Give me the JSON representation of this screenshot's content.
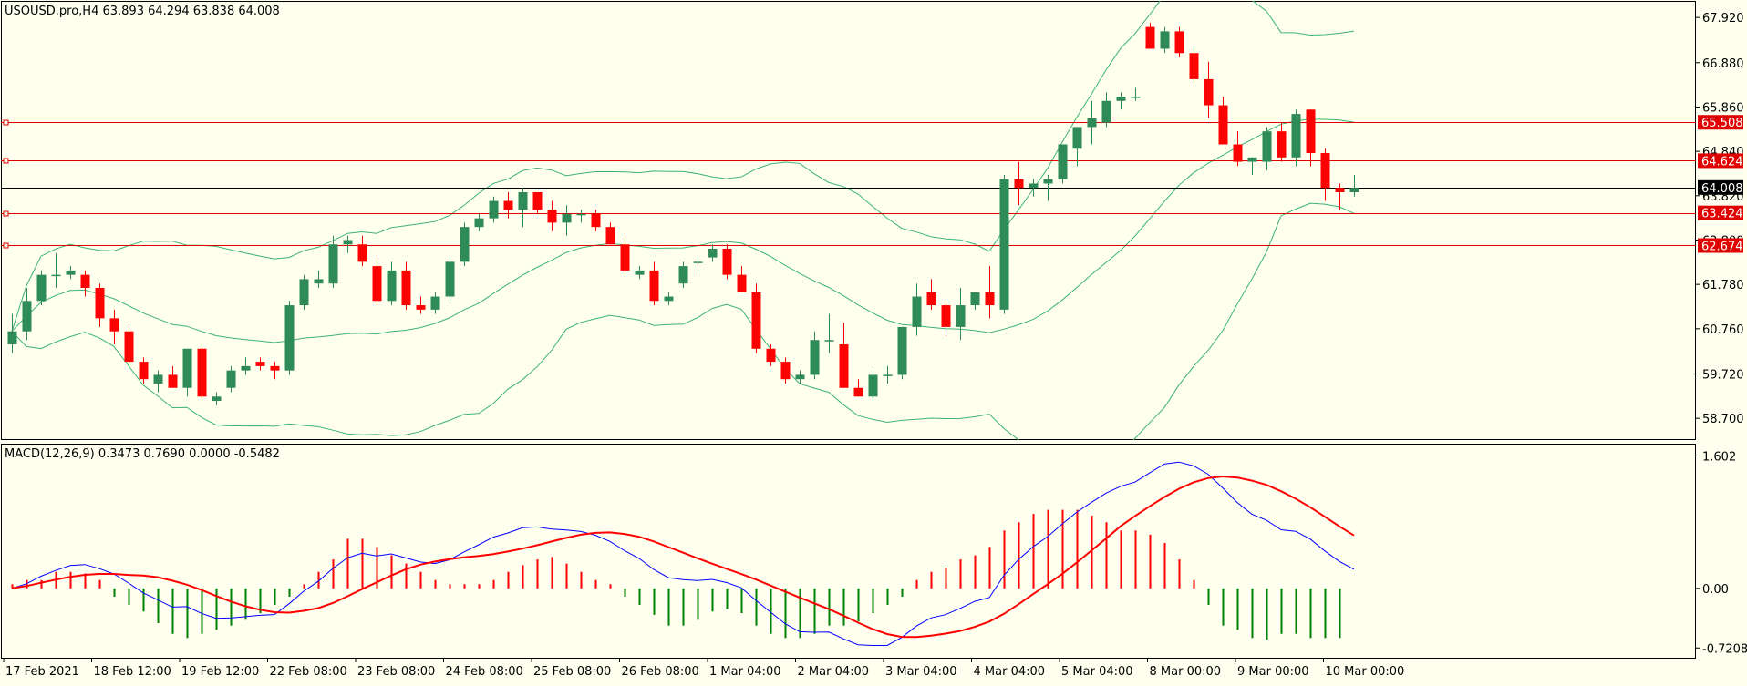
{
  "chart_data": [
    {
      "type": "candlestick",
      "panel": "main",
      "header": "USOUSD.pro,H4  63.893 64.294 63.838 64.008",
      "symbol": "USOUSD.pro",
      "timeframe": "H4",
      "ohlc_label": [
        "63.893",
        "64.294",
        "63.838",
        "64.008"
      ],
      "ylim": [
        58.2,
        68.3
      ],
      "y_tick_labels": [
        "67.920",
        "66.880",
        "65.860",
        "64.840",
        "63.820",
        "62.800",
        "61.780",
        "60.760",
        "59.720",
        "58.700"
      ],
      "x_tick_labels": [
        "17 Feb 2021",
        "18 Feb 12:00",
        "19 Feb 12:00",
        "22 Feb 08:00",
        "23 Feb 08:00",
        "24 Feb 08:00",
        "25 Feb 08:00",
        "26 Feb 08:00",
        "1 Mar 04:00",
        "2 Mar 04:00",
        "3 Mar 04:00",
        "4 Mar 04:00",
        "5 Mar 04:00",
        "8 Mar 00:00",
        "9 Mar 00:00",
        "10 Mar 00:00"
      ],
      "horizontal_lines": [
        {
          "label": "65.508",
          "value": 65.508,
          "color": "#e00000"
        },
        {
          "label": "64.624",
          "value": 64.624,
          "color": "#e00000"
        },
        {
          "label": "64.008",
          "value": 64.008,
          "color": "#000000"
        },
        {
          "label": "63.424",
          "value": 63.424,
          "color": "#e00000"
        },
        {
          "label": "62.674",
          "value": 62.674,
          "color": "#e00000"
        }
      ],
      "candles": [
        [
          60.4,
          61.1,
          60.2,
          60.7
        ],
        [
          60.7,
          61.7,
          60.5,
          61.4
        ],
        [
          61.4,
          62.1,
          61.3,
          62.0
        ],
        [
          62.0,
          62.5,
          61.7,
          62.0
        ],
        [
          62.0,
          62.2,
          61.9,
          62.1
        ],
        [
          62.0,
          62.1,
          61.5,
          61.7
        ],
        [
          61.7,
          61.8,
          60.8,
          61.0
        ],
        [
          61.0,
          61.2,
          60.4,
          60.7
        ],
        [
          60.7,
          60.8,
          59.9,
          60.0
        ],
        [
          60.0,
          60.1,
          59.5,
          59.6
        ],
        [
          59.5,
          59.8,
          59.3,
          59.7
        ],
        [
          59.7,
          59.9,
          59.5,
          59.4
        ],
        [
          59.4,
          60.3,
          59.2,
          60.3
        ],
        [
          60.3,
          60.4,
          59.1,
          59.2
        ],
        [
          59.1,
          59.3,
          59.0,
          59.2
        ],
        [
          59.4,
          59.9,
          59.3,
          59.8
        ],
        [
          59.8,
          60.1,
          59.7,
          59.9
        ],
        [
          60.0,
          60.1,
          59.8,
          59.9
        ],
        [
          59.9,
          60.0,
          59.6,
          59.8
        ],
        [
          59.8,
          61.4,
          59.7,
          61.3
        ],
        [
          61.3,
          62.0,
          61.2,
          61.9
        ],
        [
          61.8,
          62.1,
          61.7,
          61.9
        ],
        [
          61.8,
          62.9,
          61.7,
          62.7
        ],
        [
          62.7,
          62.9,
          62.5,
          62.8
        ],
        [
          62.7,
          62.9,
          62.2,
          62.3
        ],
        [
          62.2,
          62.4,
          61.3,
          61.4
        ],
        [
          61.4,
          62.3,
          61.3,
          62.1
        ],
        [
          62.1,
          62.3,
          61.2,
          61.3
        ],
        [
          61.3,
          61.5,
          61.1,
          61.2
        ],
        [
          61.2,
          61.6,
          61.1,
          61.5
        ],
        [
          61.5,
          62.4,
          61.4,
          62.3
        ],
        [
          62.3,
          63.2,
          62.2,
          63.1
        ],
        [
          63.1,
          63.4,
          63.0,
          63.3
        ],
        [
          63.3,
          63.8,
          63.2,
          63.7
        ],
        [
          63.7,
          63.9,
          63.3,
          63.5
        ],
        [
          63.5,
          64.0,
          63.1,
          63.9
        ],
        [
          63.9,
          63.9,
          63.4,
          63.5
        ],
        [
          63.5,
          63.7,
          63.0,
          63.2
        ],
        [
          63.2,
          63.6,
          62.9,
          63.4
        ],
        [
          63.4,
          63.5,
          63.2,
          63.4
        ],
        [
          63.4,
          63.5,
          63.0,
          63.1
        ],
        [
          63.1,
          63.2,
          62.7,
          62.7
        ],
        [
          62.7,
          62.9,
          62.0,
          62.1
        ],
        [
          62.0,
          62.2,
          61.9,
          62.1
        ],
        [
          62.1,
          62.3,
          61.3,
          61.4
        ],
        [
          61.4,
          61.6,
          61.3,
          61.5
        ],
        [
          61.8,
          62.3,
          61.7,
          62.2
        ],
        [
          62.3,
          62.4,
          62.0,
          62.3
        ],
        [
          62.4,
          62.7,
          62.3,
          62.6
        ],
        [
          62.6,
          62.7,
          61.9,
          62.0
        ],
        [
          62.0,
          62.2,
          61.6,
          61.6
        ],
        [
          61.6,
          61.8,
          60.2,
          60.3
        ],
        [
          60.3,
          60.4,
          59.9,
          60.0
        ],
        [
          60.0,
          60.1,
          59.5,
          59.6
        ],
        [
          59.6,
          59.8,
          59.5,
          59.7
        ],
        [
          59.7,
          60.7,
          59.6,
          60.5
        ],
        [
          60.5,
          61.1,
          60.2,
          60.5
        ],
        [
          60.4,
          60.9,
          59.4,
          59.4
        ],
        [
          59.4,
          59.6,
          59.2,
          59.2
        ],
        [
          59.2,
          59.8,
          59.1,
          59.7
        ],
        [
          59.7,
          59.9,
          59.5,
          59.7
        ],
        [
          59.7,
          60.8,
          59.6,
          60.8
        ],
        [
          60.8,
          61.8,
          60.6,
          61.5
        ],
        [
          61.6,
          61.9,
          61.2,
          61.3
        ],
        [
          61.3,
          61.4,
          60.6,
          60.8
        ],
        [
          60.8,
          61.7,
          60.5,
          61.3
        ],
        [
          61.3,
          61.6,
          61.2,
          61.6
        ],
        [
          61.6,
          62.2,
          61.0,
          61.3
        ],
        [
          61.2,
          64.3,
          61.1,
          64.2
        ],
        [
          64.2,
          64.6,
          63.6,
          64.0
        ],
        [
          64.0,
          64.2,
          63.8,
          64.1
        ],
        [
          64.1,
          64.3,
          63.7,
          64.2
        ],
        [
          64.2,
          65.0,
          64.1,
          65.0
        ],
        [
          64.9,
          65.4,
          64.5,
          65.4
        ],
        [
          65.4,
          66.0,
          65.0,
          65.6
        ],
        [
          65.5,
          66.2,
          65.4,
          66.0
        ],
        [
          66.0,
          66.2,
          65.8,
          66.1
        ],
        [
          66.1,
          66.3,
          66.0,
          66.1
        ],
        [
          67.7,
          67.8,
          67.2,
          67.2
        ],
        [
          67.2,
          67.7,
          67.1,
          67.6
        ],
        [
          67.6,
          67.7,
          67.0,
          67.1
        ],
        [
          67.1,
          67.2,
          66.4,
          66.5
        ],
        [
          66.5,
          66.9,
          65.6,
          65.9
        ],
        [
          65.9,
          66.1,
          65.0,
          65.0
        ],
        [
          65.0,
          65.3,
          64.5,
          64.6
        ],
        [
          64.6,
          64.7,
          64.3,
          64.7
        ],
        [
          64.6,
          65.4,
          64.4,
          65.3
        ],
        [
          65.3,
          65.5,
          64.6,
          64.7
        ],
        [
          64.7,
          65.8,
          64.5,
          65.7
        ],
        [
          65.8,
          65.8,
          64.5,
          64.8
        ],
        [
          64.8,
          64.9,
          63.7,
          64.0
        ],
        [
          64.0,
          64.1,
          63.5,
          63.9
        ],
        [
          63.9,
          64.3,
          63.8,
          64.0
        ]
      ]
    },
    {
      "type": "macd",
      "panel": "indicator",
      "header": "MACD(12,26,9) 0.3473 0.7690 0.0000 -0.5482",
      "parameters": "12,26,9",
      "values_label": [
        "0.3473",
        "0.7690",
        "0.0000",
        "-0.5482"
      ],
      "ylim": [
        -0.85,
        1.75
      ],
      "y_tick_labels": [
        "1.602",
        "0.00",
        "-0.7208"
      ],
      "histogram": [
        0.05,
        0.1,
        0.1,
        0.2,
        0.2,
        0.18,
        0.1,
        -0.1,
        -0.2,
        -0.28,
        -0.42,
        -0.55,
        -0.6,
        -0.55,
        -0.5,
        -0.45,
        -0.38,
        -0.3,
        -0.2,
        -0.1,
        0.05,
        0.2,
        0.35,
        0.6,
        0.6,
        0.5,
        0.4,
        0.3,
        0.2,
        0.1,
        0.05,
        0.05,
        0.05,
        0.1,
        0.2,
        0.28,
        0.35,
        0.38,
        0.3,
        0.2,
        0.1,
        0.05,
        -0.1,
        -0.2,
        -0.32,
        -0.45,
        -0.45,
        -0.38,
        -0.28,
        -0.25,
        -0.3,
        -0.45,
        -0.55,
        -0.6,
        -0.6,
        -0.55,
        -0.45,
        -0.45,
        -0.4,
        -0.3,
        -0.2,
        -0.1,
        0.1,
        0.2,
        0.25,
        0.35,
        0.4,
        0.5,
        0.7,
        0.8,
        0.9,
        0.95,
        0.95,
        0.95,
        0.88,
        0.8,
        0.7,
        0.7,
        0.65,
        0.55,
        0.35,
        0.1,
        -0.2,
        -0.45,
        -0.5,
        -0.6,
        -0.62,
        -0.55,
        -0.55,
        -0.6,
        -0.6,
        -0.6
      ]
    }
  ]
}
